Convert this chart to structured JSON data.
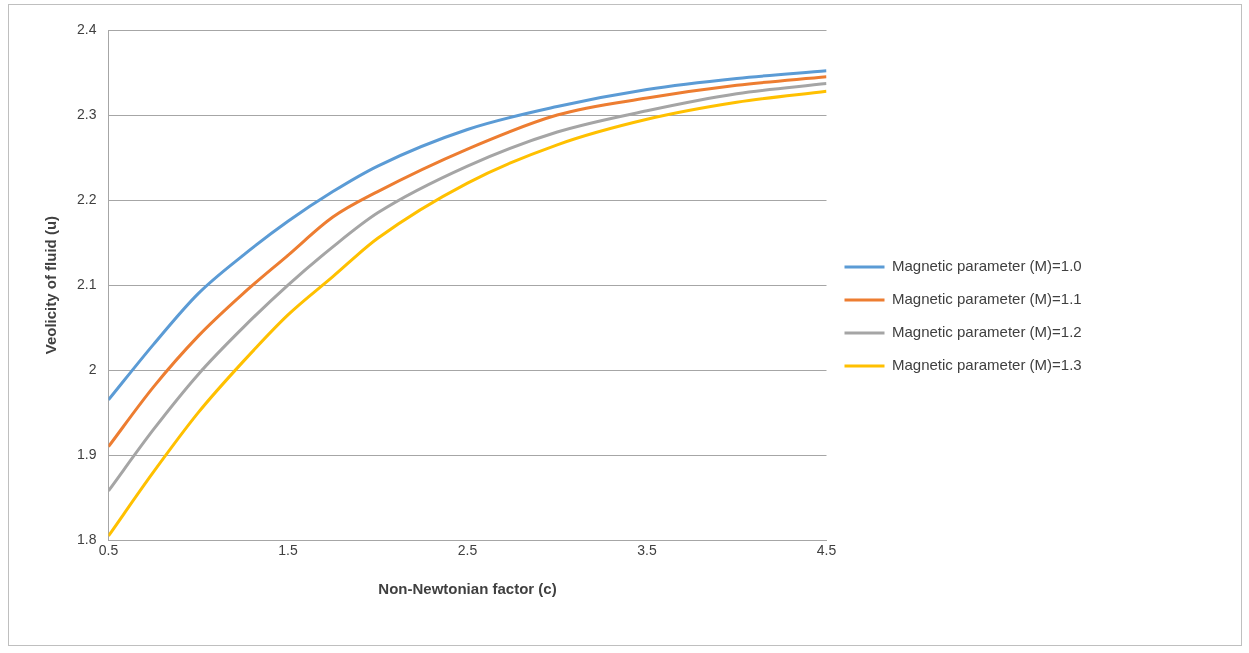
{
  "chart_data": {
    "type": "line",
    "xlabel": "Non-Newtonian factor (c)",
    "ylabel": "Veolicity of fluid (u)",
    "x": [
      0.5,
      0.75,
      1.0,
      1.25,
      1.5,
      1.75,
      2.0,
      2.5,
      3.0,
      3.5,
      4.0,
      4.5
    ],
    "series": [
      {
        "name": "Magnetic parameter (M)=1.0",
        "color": "#5b9bd5",
        "values": [
          1.965,
          2.03,
          2.09,
          2.135,
          2.175,
          2.21,
          2.24,
          2.283,
          2.31,
          2.33,
          2.343,
          2.352
        ]
      },
      {
        "name": "Magnetic parameter (M)=1.1",
        "color": "#ed7d31",
        "values": [
          1.91,
          1.98,
          2.04,
          2.09,
          2.135,
          2.18,
          2.21,
          2.26,
          2.3,
          2.32,
          2.335,
          2.345
        ]
      },
      {
        "name": "Magnetic parameter (M)=1.2",
        "color": "#a5a5a5",
        "values": [
          1.858,
          1.93,
          1.995,
          2.05,
          2.1,
          2.145,
          2.185,
          2.24,
          2.28,
          2.305,
          2.325,
          2.337
        ]
      },
      {
        "name": "Magnetic parameter (M)=1.3",
        "color": "#ffc000",
        "values": [
          1.805,
          1.88,
          1.95,
          2.01,
          2.065,
          2.11,
          2.155,
          2.22,
          2.265,
          2.295,
          2.315,
          2.328
        ]
      }
    ],
    "xlim": [
      0.5,
      4.5
    ],
    "xticks": [
      0.5,
      1.5,
      2.5,
      3.5,
      4.5
    ],
    "ylim": [
      1.8,
      2.4
    ],
    "yticks": [
      1.8,
      1.9,
      2,
      2.1,
      2.2,
      2.3,
      2.4
    ],
    "grid": "y",
    "legend": "right",
    "marker": "none",
    "line_style": "solid"
  }
}
